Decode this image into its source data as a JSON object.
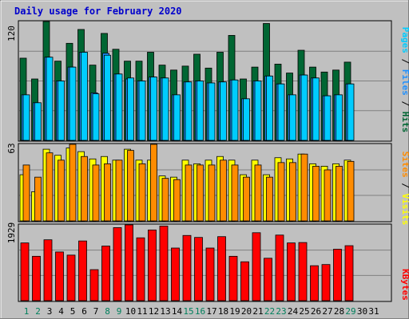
{
  "chart_data": [
    {
      "type": "bar",
      "panel": "top",
      "title": "Daily usage for February 2020",
      "ylabel": "Pages / Files / Hits",
      "y_tick_label": "120",
      "ylim": [
        0,
        120
      ],
      "grid": true,
      "categories": [
        "1",
        "2",
        "3",
        "4",
        "5",
        "6",
        "7",
        "8",
        "9",
        "10",
        "11",
        "12",
        "13",
        "14",
        "15",
        "16",
        "17",
        "18",
        "19",
        "20",
        "21",
        "22",
        "23",
        "24",
        "25",
        "26",
        "27",
        "28",
        "29",
        "30",
        "31"
      ],
      "series": [
        {
          "name": "Hits",
          "color": "#006633",
          "values": [
            83,
            62,
            120,
            80,
            98,
            112,
            76,
            108,
            92,
            80,
            80,
            89,
            76,
            71,
            75,
            87,
            73,
            89,
            106,
            62,
            74,
            118,
            77,
            68,
            91,
            74,
            69,
            71,
            79,
            null,
            null
          ]
        },
        {
          "name": "Files",
          "color": "#1e90ff",
          "values": [
            46,
            38,
            84,
            60,
            74,
            89,
            48,
            88,
            67,
            62,
            60,
            64,
            63,
            46,
            59,
            60,
            58,
            59,
            61,
            42,
            60,
            65,
            57,
            46,
            66,
            63,
            45,
            46,
            57,
            null,
            null
          ]
        },
        {
          "name": "Pages",
          "color": "#00ccff",
          "values": [
            46,
            38,
            84,
            60,
            74,
            89,
            47,
            86,
            67,
            63,
            60,
            64,
            63,
            46,
            59,
            60,
            58,
            59,
            61,
            42,
            60,
            65,
            57,
            46,
            66,
            63,
            45,
            46,
            57,
            null,
            null
          ]
        }
      ]
    },
    {
      "type": "bar",
      "panel": "middle",
      "ylabel": "Sites / Visits",
      "y_tick_label": "63",
      "ylim": [
        0,
        63
      ],
      "grid": true,
      "categories": [
        "1",
        "2",
        "3",
        "4",
        "5",
        "6",
        "7",
        "8",
        "9",
        "10",
        "11",
        "12",
        "13",
        "14",
        "15",
        "16",
        "17",
        "18",
        "19",
        "20",
        "21",
        "22",
        "23",
        "24",
        "25",
        "26",
        "27",
        "28",
        "29",
        "30",
        "31"
      ],
      "series": [
        {
          "name": "Visits",
          "color": "#ffff00",
          "values": [
            38,
            24,
            59,
            54,
            60,
            57,
            51,
            53,
            50,
            59,
            50,
            50,
            37,
            36,
            50,
            47,
            50,
            53,
            50,
            38,
            50,
            38,
            52,
            51,
            55,
            47,
            45,
            47,
            50,
            null,
            null
          ]
        },
        {
          "name": "Sites",
          "color": "#ff8c00",
          "values": [
            46,
            36,
            56,
            50,
            64,
            53,
            46,
            47,
            50,
            58,
            47,
            63,
            35,
            34,
            46,
            46,
            46,
            50,
            46,
            36,
            46,
            36,
            48,
            48,
            55,
            45,
            42,
            45,
            49,
            null,
            null
          ]
        }
      ]
    },
    {
      "type": "bar",
      "panel": "bottom",
      "ylabel": "KBytes",
      "y_tick_label": "1929",
      "ylim": [
        0,
        1929
      ],
      "grid": true,
      "categories": [
        "1",
        "2",
        "3",
        "4",
        "5",
        "6",
        "7",
        "8",
        "9",
        "10",
        "11",
        "12",
        "13",
        "14",
        "15",
        "16",
        "17",
        "18",
        "19",
        "20",
        "21",
        "22",
        "23",
        "24",
        "25",
        "26",
        "27",
        "28",
        "29",
        "30",
        "31"
      ],
      "series": [
        {
          "name": "KBytes",
          "color": "#ff0000",
          "values": [
            1470,
            1130,
            1550,
            1240,
            1160,
            1520,
            790,
            1390,
            1860,
            1940,
            1600,
            1800,
            1900,
            1340,
            1660,
            1610,
            1340,
            1630,
            1130,
            990,
            1730,
            1080,
            1670,
            1470,
            1480,
            890,
            920,
            1310,
            1400,
            null,
            null
          ]
        }
      ]
    }
  ],
  "x_axis": {
    "labels": [
      "1",
      "2",
      "3",
      "4",
      "5",
      "6",
      "7",
      "8",
      "9",
      "10",
      "11",
      "12",
      "13",
      "14",
      "15",
      "16",
      "17",
      "18",
      "19",
      "20",
      "21",
      "22",
      "23",
      "24",
      "25",
      "26",
      "27",
      "28",
      "29",
      "30",
      "31"
    ],
    "weekend_days": [
      "1",
      "2",
      "8",
      "9",
      "15",
      "16",
      "22",
      "23",
      "29"
    ],
    "weekend_color": "#00805c",
    "weekday_color": "#000000"
  },
  "colors": {
    "title": "#0000cc",
    "background": "#c0c0c0",
    "plot_background": "#c0c0c0",
    "gridline": "#808080"
  }
}
